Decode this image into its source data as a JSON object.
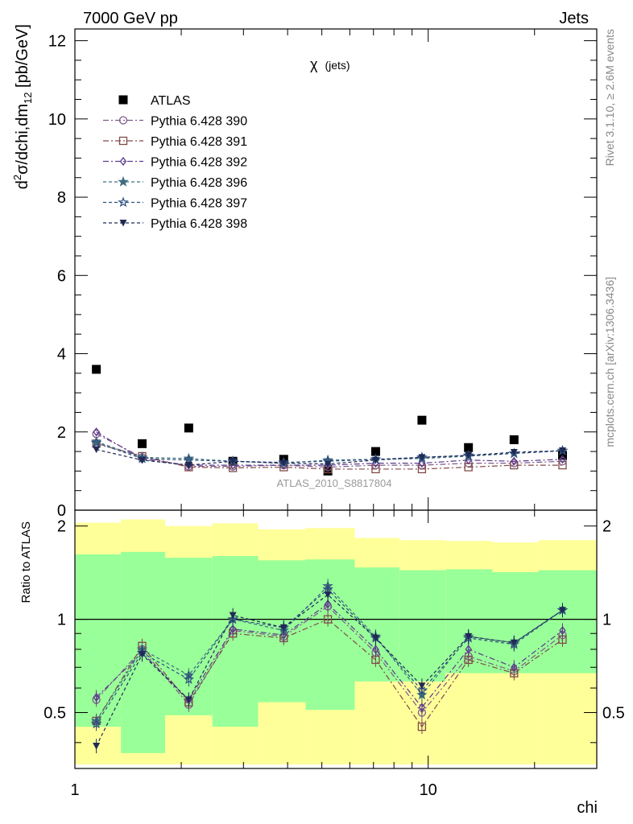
{
  "header": {
    "energy": "7000 GeV pp",
    "process": "Jets",
    "observable": "χ",
    "observable_sub": "(jets)",
    "analysis": "ATLAS_2010_S8817804",
    "rivet": "Rivet 3.1.10, ≥ 2.6M events",
    "mcplots": "mcplots.cern.ch [arXiv:1306.3436]"
  },
  "chart_data": {
    "type": "scatter",
    "x": [
      1.15,
      1.55,
      2.1,
      2.8,
      3.9,
      5.2,
      7.1,
      9.6,
      13.0,
      17.5,
      24.0
    ],
    "x_tick_labels": [
      "1",
      "10"
    ],
    "xlabel": "chi",
    "xscale": "log",
    "xlim": [
      1.0,
      30.0
    ],
    "main": {
      "ylabel": "d²σ/dchi,dm12 [pb/GeV]",
      "ylabel_parts": [
        "d",
        "2",
        "σ/dchi,dm",
        "12",
        " [pb/GeV]"
      ],
      "ylim": [
        0,
        12.3
      ],
      "y_tick_labels": [
        "0",
        "2",
        "4",
        "6",
        "8",
        "10",
        "12"
      ]
    },
    "ratio": {
      "ylabel": "Ratio to ATLAS",
      "ylim": [
        0.33,
        2.25
      ],
      "y_tick_labels": [
        "0.5",
        "1",
        "2"
      ],
      "band_edges": [
        1.0,
        1.35,
        1.8,
        2.45,
        3.3,
        4.5,
        6.2,
        8.3,
        11.2,
        15.2,
        20.5,
        30.0
      ],
      "green_band": [
        [
          0.45,
          1.62
        ],
        [
          0.37,
          1.65
        ],
        [
          0.49,
          1.58
        ],
        [
          0.45,
          1.6
        ],
        [
          0.54,
          1.55
        ],
        [
          0.51,
          1.56
        ],
        [
          0.63,
          1.47
        ],
        [
          0.63,
          1.44
        ],
        [
          0.67,
          1.45
        ],
        [
          0.67,
          1.42
        ],
        [
          0.67,
          1.44
        ]
      ],
      "yellow_band": [
        [
          0.34,
          2.05
        ],
        [
          0.34,
          2.1
        ],
        [
          0.34,
          2.0
        ],
        [
          0.34,
          2.04
        ],
        [
          0.34,
          1.95
        ],
        [
          0.34,
          1.97
        ],
        [
          0.34,
          1.83
        ],
        [
          0.34,
          1.8
        ],
        [
          0.34,
          1.79
        ],
        [
          0.34,
          1.77
        ],
        [
          0.34,
          1.8
        ]
      ]
    },
    "series": [
      {
        "name": "ATLAS",
        "marker": "square-filled",
        "color": "#000000",
        "dash": "none",
        "values": [
          3.6,
          1.7,
          2.1,
          1.25,
          1.3,
          1.0,
          1.5,
          2.3,
          1.6,
          1.8,
          1.4
        ],
        "ratio": [
          1,
          1,
          1,
          1,
          1,
          1,
          1,
          1,
          1,
          1,
          1
        ]
      },
      {
        "name": "Pythia 6.428 390",
        "marker": "circle-open",
        "color": "#7f5a8c",
        "dash": "7,3,2,3",
        "values": [
          1.95,
          1.35,
          1.12,
          1.12,
          1.15,
          1.1,
          1.15,
          1.15,
          1.2,
          1.2,
          1.25
        ],
        "ratio": [
          0.55,
          0.8,
          0.53,
          0.92,
          0.88,
          1.1,
          0.78,
          0.5,
          0.76,
          0.68,
          0.89
        ]
      },
      {
        "name": "Pythia 6.428 391",
        "marker": "square-open",
        "color": "#7f4a48",
        "dash": "7,3,2,3",
        "values": [
          1.7,
          1.38,
          1.1,
          1.08,
          1.1,
          1.05,
          1.05,
          1.05,
          1.1,
          1.15,
          1.15
        ],
        "ratio": [
          0.47,
          0.82,
          0.54,
          0.9,
          0.87,
          1.0,
          0.74,
          0.45,
          0.74,
          0.67,
          0.86
        ]
      },
      {
        "name": "Pythia 6.428 392",
        "marker": "diamond-open",
        "color": "#5a3a8c",
        "dash": "7,3,2,3",
        "values": [
          2.0,
          1.3,
          1.15,
          1.15,
          1.15,
          1.15,
          1.2,
          1.2,
          1.28,
          1.25,
          1.3
        ],
        "ratio": [
          0.56,
          0.78,
          0.55,
          0.93,
          0.89,
          1.12,
          0.8,
          0.52,
          0.8,
          0.7,
          0.92
        ]
      },
      {
        "name": "Pythia 6.428 396",
        "marker": "star-filled",
        "color": "#3f6e7f",
        "dash": "4,3",
        "values": [
          1.75,
          1.35,
          1.32,
          1.25,
          1.2,
          1.28,
          1.3,
          1.32,
          1.38,
          1.45,
          1.52
        ],
        "ratio": [
          0.47,
          0.8,
          0.66,
          1.0,
          0.92,
          1.28,
          0.88,
          0.57,
          0.88,
          0.84,
          1.07
        ]
      },
      {
        "name": "Pythia 6.428 397",
        "marker": "star-open",
        "color": "#2f4f7f",
        "dash": "4,3",
        "values": [
          1.72,
          1.32,
          1.28,
          1.25,
          1.22,
          1.25,
          1.3,
          1.35,
          1.4,
          1.45,
          1.52
        ],
        "ratio": [
          0.46,
          0.78,
          0.64,
          1.0,
          0.94,
          1.25,
          0.87,
          0.59,
          0.87,
          0.83,
          1.07
        ]
      },
      {
        "name": "Pythia 6.428 398",
        "marker": "triangle-down-filled",
        "color": "#1f2a55",
        "dash": "4,3",
        "values": [
          1.55,
          1.28,
          1.15,
          1.25,
          1.2,
          1.18,
          1.28,
          1.35,
          1.4,
          1.48,
          1.52
        ],
        "ratio": [
          0.39,
          0.77,
          0.55,
          1.03,
          0.94,
          1.2,
          0.87,
          0.61,
          0.88,
          0.84,
          1.07
        ]
      }
    ]
  }
}
